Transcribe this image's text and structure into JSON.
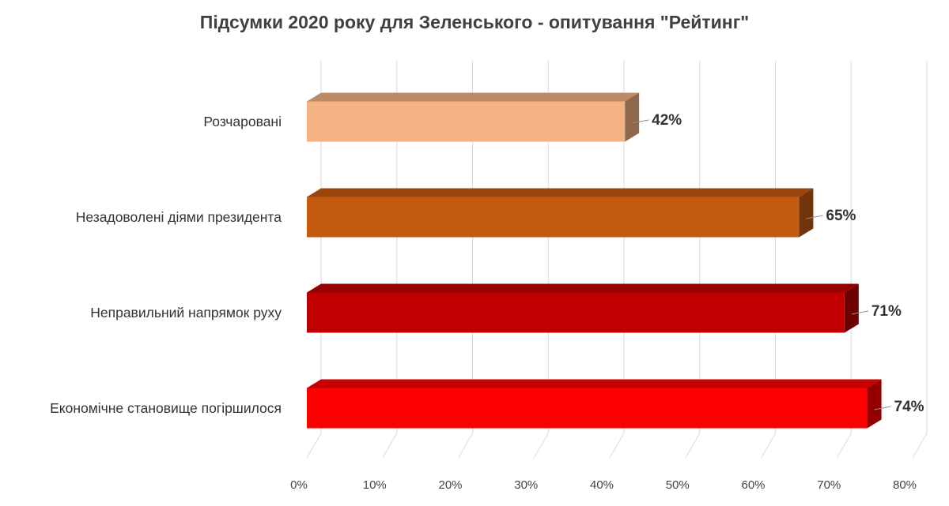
{
  "chart_data": {
    "type": "bar",
    "orientation": "horizontal",
    "style": "3d",
    "title": "Підсумки 2020 року для Зеленського - опитування \"Рейтинг\"",
    "categories": [
      "Розчаровані",
      "Незадоволені діями президента",
      "Неправильний напрямок руху",
      "Економічне становище погіршилося"
    ],
    "values": [
      42,
      65,
      71,
      74
    ],
    "data_labels": [
      "42%",
      "65%",
      "71%",
      "74%"
    ],
    "colors": [
      "#f4b183",
      "#c55a11",
      "#c00000",
      "#ff0000"
    ],
    "xlim": [
      0,
      80
    ],
    "xticks": [
      0,
      10,
      20,
      30,
      40,
      50,
      60,
      70,
      80
    ],
    "xtick_labels": [
      "0%",
      "10%",
      "20%",
      "30%",
      "40%",
      "50%",
      "60%",
      "70%",
      "80%"
    ],
    "grid": true,
    "legend": "none"
  }
}
